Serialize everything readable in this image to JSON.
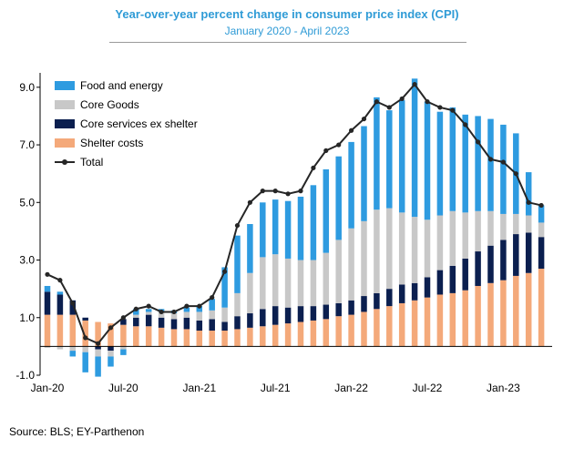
{
  "chart_data": {
    "type": "bar",
    "stacked": true,
    "title": "Year-over-year percent change in consumer price index (CPI)",
    "subtitle": "January 2020 - April 2023",
    "source": "Source: BLS; EY-Parthenon",
    "ylim": [
      -1.0,
      9.5
    ],
    "yticks": [
      -1.0,
      1.0,
      3.0,
      5.0,
      7.0,
      9.0
    ],
    "ytick_labels": [
      "-1.0",
      "1.0",
      "3.0",
      "5.0",
      "7.0",
      "9.0"
    ],
    "xtick_labels": [
      {
        "label": "Jan-20",
        "index": 0
      },
      {
        "label": "Jul-20",
        "index": 6
      },
      {
        "label": "Jan-21",
        "index": 12
      },
      {
        "label": "Jul-21",
        "index": 18
      },
      {
        "label": "Jan-22",
        "index": 24
      },
      {
        "label": "Jul-22",
        "index": 30
      },
      {
        "label": "Jan-23",
        "index": 36
      }
    ],
    "categories": [
      "Jan-20",
      "Feb-20",
      "Mar-20",
      "Apr-20",
      "May-20",
      "Jun-20",
      "Jul-20",
      "Aug-20",
      "Sep-20",
      "Oct-20",
      "Nov-20",
      "Dec-20",
      "Jan-21",
      "Feb-21",
      "Mar-21",
      "Apr-21",
      "May-21",
      "Jun-21",
      "Jul-21",
      "Aug-21",
      "Sep-21",
      "Oct-21",
      "Nov-21",
      "Dec-21",
      "Jan-22",
      "Feb-22",
      "Mar-22",
      "Apr-22",
      "May-22",
      "Jun-22",
      "Jul-22",
      "Aug-22",
      "Sep-22",
      "Oct-22",
      "Nov-22",
      "Dec-22",
      "Jan-23",
      "Feb-23",
      "Mar-23",
      "Apr-23"
    ],
    "series": [
      {
        "name": "Shelter costs",
        "color": "#f4a97a",
        "kind": "bar",
        "values": [
          1.1,
          1.1,
          1.1,
          0.9,
          0.85,
          0.8,
          0.75,
          0.7,
          0.7,
          0.65,
          0.6,
          0.6,
          0.55,
          0.55,
          0.55,
          0.6,
          0.65,
          0.7,
          0.75,
          0.8,
          0.85,
          0.9,
          0.95,
          1.05,
          1.1,
          1.2,
          1.3,
          1.4,
          1.5,
          1.6,
          1.7,
          1.8,
          1.85,
          1.95,
          2.1,
          2.2,
          2.3,
          2.45,
          2.55,
          2.7
        ]
      },
      {
        "name": "Core services ex shelter",
        "color": "#0b1f4f",
        "kind": "bar",
        "values": [
          0.8,
          0.7,
          0.5,
          0.1,
          -0.1,
          -0.15,
          0.2,
          0.3,
          0.4,
          0.35,
          0.35,
          0.4,
          0.35,
          0.4,
          0.3,
          0.45,
          0.5,
          0.6,
          0.65,
          0.55,
          0.55,
          0.5,
          0.5,
          0.45,
          0.5,
          0.55,
          0.55,
          0.6,
          0.65,
          0.6,
          0.7,
          0.85,
          0.95,
          1.1,
          1.2,
          1.3,
          1.4,
          1.45,
          1.4,
          1.1
        ]
      },
      {
        "name": "Core Goods",
        "color": "#c8c8c8",
        "kind": "bar",
        "values": [
          -0.05,
          -0.1,
          -0.15,
          -0.2,
          -0.25,
          -0.2,
          -0.1,
          0.1,
          0.1,
          0.2,
          0.2,
          0.2,
          0.3,
          0.3,
          0.5,
          0.8,
          1.4,
          1.8,
          1.8,
          1.7,
          1.6,
          1.6,
          1.8,
          2.2,
          2.5,
          2.6,
          2.9,
          2.8,
          2.5,
          2.3,
          2.0,
          1.9,
          1.9,
          1.6,
          1.4,
          1.2,
          0.9,
          0.7,
          0.6,
          0.5
        ]
      },
      {
        "name": "Food and energy",
        "color": "#2e9be0",
        "kind": "bar",
        "values": [
          0.2,
          0.1,
          -0.2,
          -0.7,
          -0.7,
          -0.35,
          -0.2,
          0.2,
          0.1,
          0.1,
          0.1,
          0.15,
          0.2,
          0.4,
          1.4,
          2.0,
          1.7,
          1.9,
          1.9,
          2.0,
          2.2,
          2.6,
          2.9,
          2.9,
          3.0,
          3.3,
          3.9,
          3.4,
          3.9,
          4.8,
          4.1,
          3.6,
          3.6,
          3.4,
          3.3,
          3.2,
          3.1,
          2.8,
          1.5,
          0.6
        ]
      },
      {
        "name": "Total",
        "color": "#262626",
        "kind": "line",
        "values": [
          2.5,
          2.3,
          1.5,
          0.3,
          0.1,
          0.65,
          1.0,
          1.3,
          1.4,
          1.2,
          1.2,
          1.4,
          1.4,
          1.7,
          2.6,
          4.2,
          5.0,
          5.4,
          5.4,
          5.3,
          5.4,
          6.2,
          6.8,
          7.0,
          7.5,
          7.9,
          8.5,
          8.3,
          8.6,
          9.1,
          8.5,
          8.3,
          8.2,
          7.7,
          7.1,
          6.5,
          6.4,
          6.0,
          5.0,
          4.9
        ]
      }
    ],
    "legend_order": [
      "Food and energy",
      "Core Goods",
      "Core services ex shelter",
      "Shelter costs",
      "Total"
    ],
    "legend_position": "top-left",
    "grid": false
  }
}
